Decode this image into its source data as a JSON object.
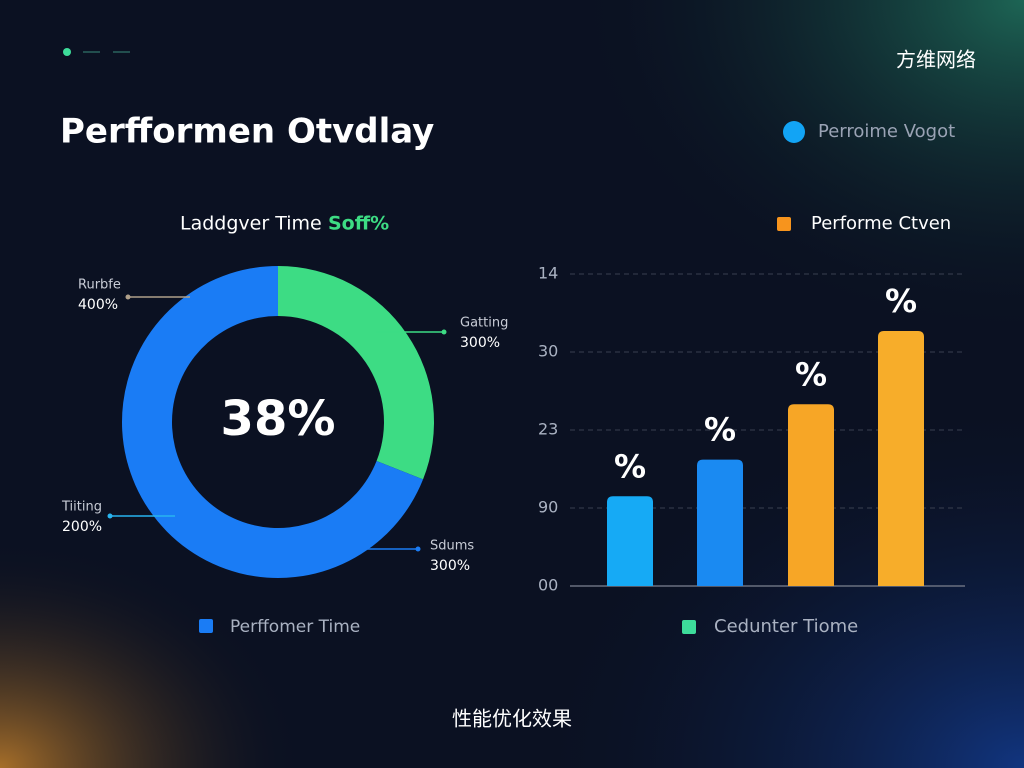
{
  "header": {
    "brand": "方维网络",
    "title": "Perfformen Otvdlay",
    "badge": "Perroime Vogot",
    "badge_color": "#12a4f5"
  },
  "chart_data": [
    {
      "type": "donut",
      "title": "Laddgver Time",
      "highlight": "Soff%",
      "center_label": "38%",
      "values": [
        31,
        69
      ],
      "colors": [
        "#3ddc84",
        "#1a7cf5"
      ],
      "annotations": [
        {
          "name": "Rurbfe",
          "text": "400%"
        },
        {
          "name": "Gatting",
          "text": "300%"
        },
        {
          "name": "Tiiting",
          "text": "200%"
        },
        {
          "name": "Sdums",
          "text": "300%"
        }
      ],
      "legend": {
        "name": "Perffomer Time",
        "color": "#1a7cf5"
      }
    },
    {
      "type": "bar",
      "values": [
        1.15,
        1.62,
        2.33,
        3.27
      ],
      "value_labels": [
        "%",
        "%",
        "%",
        "%"
      ],
      "colors": [
        "#16aaf5",
        "#1a8af2",
        "#f7a626",
        "#f7ad2a"
      ],
      "ylim": [
        0,
        4
      ],
      "yticks": [
        {
          "value": 0,
          "label": "00"
        },
        {
          "value": 1,
          "label": "90"
        },
        {
          "value": 2,
          "label": "23"
        },
        {
          "value": 3,
          "label": "30"
        },
        {
          "value": 4,
          "label": "14"
        }
      ],
      "grid": true,
      "legend": [
        {
          "name": "Performe Ctven",
          "color": "#f7941d"
        },
        {
          "name": "Cedunter Tiome",
          "color": "#3ddc9a"
        }
      ]
    }
  ],
  "footer": {
    "caption": "性能优化效果"
  }
}
